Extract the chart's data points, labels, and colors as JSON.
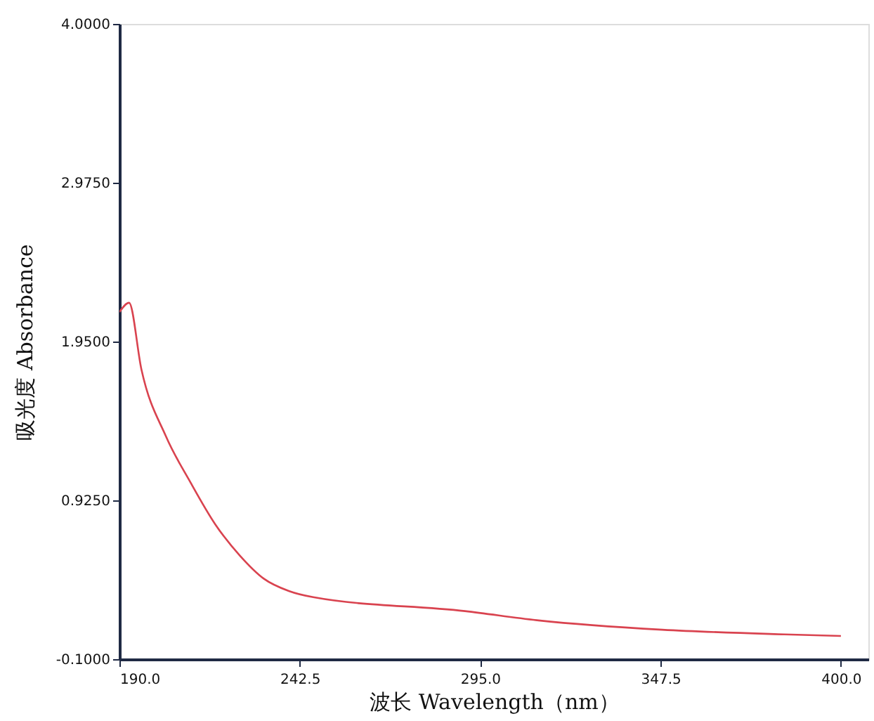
{
  "chart_data": {
    "type": "line",
    "xlabel": "波长 Wavelength（nm）",
    "ylabel": "吸光度 Absorbance",
    "x": [
      190,
      192.8,
      196.4,
      203.5,
      210.7,
      217.9,
      225,
      232,
      239.3,
      246.4,
      290.6,
      312,
      348,
      383.6,
      400
    ],
    "series": [
      {
        "color": "#d9434f",
        "values": [
          2.14,
          2.2,
          1.77,
          1.34,
          1.04,
          0.77,
          0.57,
          0.42,
          0.34,
          0.3,
          0.21,
          0.15,
          0.09,
          0.06,
          0.05
        ]
      }
    ],
    "xlim": [
      190,
      408
    ],
    "ylim": [
      -0.1,
      4.0
    ],
    "xticks": [
      {
        "value": 190,
        "label": "190.0"
      },
      {
        "value": 242.5,
        "label": "242.5"
      },
      {
        "value": 295,
        "label": "295.0"
      },
      {
        "value": 347.5,
        "label": "347.5"
      },
      {
        "value": 400,
        "label": "400.0"
      }
    ],
    "yticks": [
      {
        "value": -0.1,
        "label": "-0.1000"
      },
      {
        "value": 0.925,
        "label": "0.9250"
      },
      {
        "value": 1.95,
        "label": "1.9500"
      },
      {
        "value": 2.975,
        "label": "2.9750"
      },
      {
        "value": 4.0,
        "label": "4.0000"
      }
    ],
    "grid": false,
    "marker": "none",
    "line_style": "solid"
  }
}
